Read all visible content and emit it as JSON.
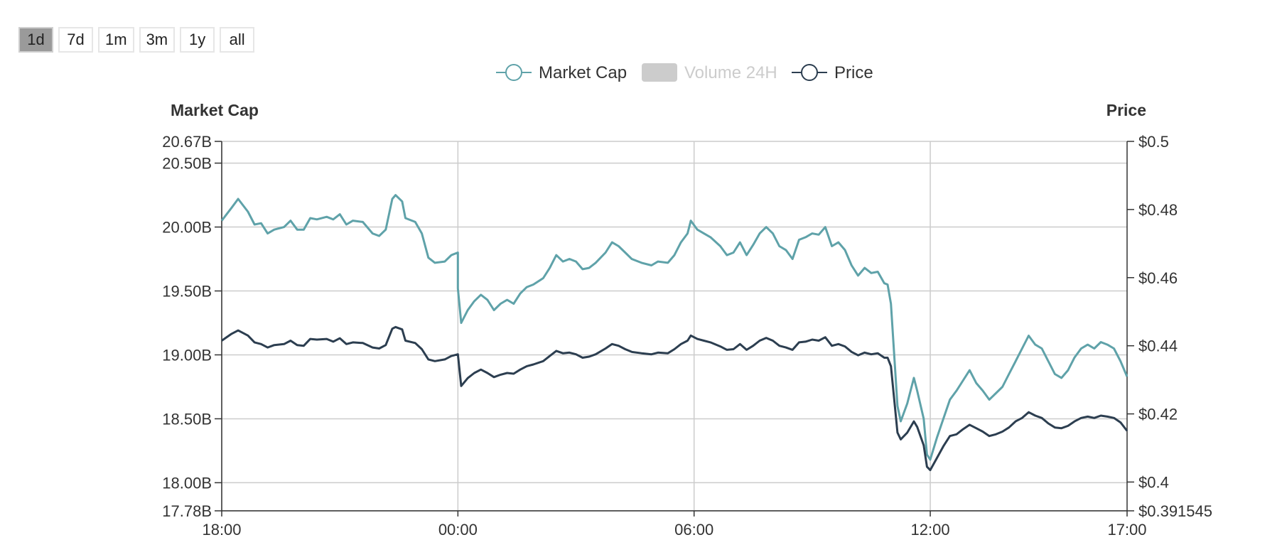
{
  "range_buttons": [
    {
      "label": "1d",
      "active": true
    },
    {
      "label": "7d",
      "active": false
    },
    {
      "label": "1m",
      "active": false
    },
    {
      "label": "3m",
      "active": false
    },
    {
      "label": "1y",
      "active": false
    },
    {
      "label": "all",
      "active": false
    }
  ],
  "legend": [
    {
      "label": "Market Cap",
      "enabled": true,
      "color": "#5fa2a9"
    },
    {
      "label": "Volume 24H",
      "enabled": false,
      "color": "#cccccc"
    },
    {
      "label": "Price",
      "enabled": true,
      "color": "#2c3e50"
    }
  ],
  "chart_data": {
    "type": "line",
    "left_axis_title": "Market Cap",
    "right_axis_title": "Price",
    "x_ticks": [
      "18:00",
      "00:00",
      "06:00",
      "12:00",
      "17:00"
    ],
    "x_range": [
      "18:00",
      "17:00"
    ],
    "left_ticks": [
      "20.67B",
      "20.50B",
      "20.00B",
      "19.50B",
      "19.00B",
      "18.50B",
      "18.00B",
      "17.78B"
    ],
    "left_tick_values": [
      20.67,
      20.5,
      20.0,
      19.5,
      19.0,
      18.5,
      18.0,
      17.78
    ],
    "left_ylim": [
      17.78,
      20.67
    ],
    "right_ticks": [
      "$0.5",
      "$0.48",
      "$0.46",
      "$0.44",
      "$0.42",
      "$0.4",
      "$0.391545"
    ],
    "right_tick_values": [
      0.5,
      0.48,
      0.46,
      0.44,
      0.42,
      0.4,
      0.391545
    ],
    "right_ylim": [
      0.391545,
      0.5
    ],
    "grid": true,
    "legend_position": "top-center",
    "series": [
      {
        "name": "Market Cap",
        "axis": "left",
        "unit": "B",
        "color": "#5fa2a9",
        "points": [
          [
            "18:00",
            20.05
          ],
          [
            "18:15",
            20.15
          ],
          [
            "18:25",
            20.22
          ],
          [
            "18:40",
            20.12
          ],
          [
            "18:50",
            20.02
          ],
          [
            "19:00",
            20.03
          ],
          [
            "19:10",
            19.95
          ],
          [
            "19:20",
            19.98
          ],
          [
            "19:35",
            20.0
          ],
          [
            "19:45",
            20.05
          ],
          [
            "19:55",
            19.98
          ],
          [
            "20:05",
            19.98
          ],
          [
            "20:15",
            20.07
          ],
          [
            "20:25",
            20.06
          ],
          [
            "20:40",
            20.08
          ],
          [
            "20:50",
            20.06
          ],
          [
            "21:00",
            20.1
          ],
          [
            "21:10",
            20.02
          ],
          [
            "21:20",
            20.05
          ],
          [
            "21:35",
            20.04
          ],
          [
            "21:50",
            19.95
          ],
          [
            "22:00",
            19.93
          ],
          [
            "22:10",
            19.98
          ],
          [
            "22:20",
            20.22
          ],
          [
            "22:25",
            20.25
          ],
          [
            "22:35",
            20.2
          ],
          [
            "22:40",
            20.07
          ],
          [
            "22:55",
            20.04
          ],
          [
            "23:05",
            19.95
          ],
          [
            "23:15",
            19.76
          ],
          [
            "23:25",
            19.72
          ],
          [
            "23:40",
            19.73
          ],
          [
            "23:50",
            19.78
          ],
          [
            "00:00",
            19.8
          ]
        ],
        "points_after_midnight": [
          [
            "00:00",
            19.52
          ],
          [
            "00:05",
            19.25
          ],
          [
            "00:15",
            19.35
          ],
          [
            "00:25",
            19.42
          ],
          [
            "00:35",
            19.47
          ],
          [
            "00:45",
            19.43
          ],
          [
            "00:55",
            19.35
          ],
          [
            "01:05",
            19.4
          ],
          [
            "01:15",
            19.43
          ],
          [
            "01:25",
            19.4
          ],
          [
            "01:35",
            19.48
          ],
          [
            "01:45",
            19.53
          ],
          [
            "01:55",
            19.55
          ],
          [
            "02:10",
            19.6
          ],
          [
            "02:20",
            19.68
          ],
          [
            "02:30",
            19.78
          ],
          [
            "02:40",
            19.73
          ],
          [
            "02:50",
            19.75
          ],
          [
            "03:00",
            19.73
          ],
          [
            "03:10",
            19.67
          ],
          [
            "03:20",
            19.68
          ],
          [
            "03:30",
            19.72
          ],
          [
            "03:45",
            19.8
          ],
          [
            "03:55",
            19.88
          ],
          [
            "04:05",
            19.85
          ],
          [
            "04:15",
            19.8
          ],
          [
            "04:25",
            19.75
          ],
          [
            "04:40",
            19.72
          ],
          [
            "04:55",
            19.7
          ],
          [
            "05:05",
            19.73
          ],
          [
            "05:20",
            19.72
          ],
          [
            "05:30",
            19.78
          ],
          [
            "05:40",
            19.88
          ],
          [
            "05:50",
            19.95
          ],
          [
            "05:55",
            20.05
          ],
          [
            "06:05",
            19.98
          ],
          [
            "06:15",
            19.95
          ],
          [
            "06:25",
            19.92
          ],
          [
            "06:40",
            19.85
          ],
          [
            "06:50",
            19.78
          ],
          [
            "07:00",
            19.8
          ],
          [
            "07:10",
            19.88
          ],
          [
            "07:20",
            19.78
          ],
          [
            "07:30",
            19.86
          ],
          [
            "07:40",
            19.95
          ],
          [
            "07:50",
            20.0
          ],
          [
            "08:00",
            19.95
          ],
          [
            "08:10",
            19.85
          ],
          [
            "08:20",
            19.82
          ],
          [
            "08:30",
            19.75
          ],
          [
            "08:40",
            19.9
          ],
          [
            "08:50",
            19.92
          ],
          [
            "09:00",
            19.95
          ],
          [
            "09:10",
            19.94
          ],
          [
            "09:20",
            20.0
          ],
          [
            "09:30",
            19.85
          ],
          [
            "09:40",
            19.88
          ],
          [
            "09:50",
            19.82
          ],
          [
            "10:00",
            19.7
          ],
          [
            "10:10",
            19.62
          ],
          [
            "10:20",
            19.68
          ],
          [
            "10:30",
            19.64
          ],
          [
            "10:40",
            19.65
          ],
          [
            "10:50",
            19.56
          ],
          [
            "10:55",
            19.55
          ]
        ],
        "points_late": [
          [
            "11:00",
            19.4
          ],
          [
            "11:10",
            18.6
          ],
          [
            "11:15",
            18.48
          ],
          [
            "11:25",
            18.62
          ],
          [
            "11:35",
            18.82
          ],
          [
            "11:40",
            18.72
          ],
          [
            "11:50",
            18.5
          ],
          [
            "11:55",
            18.22
          ],
          [
            "12:00",
            18.18
          ],
          [
            "12:10",
            18.35
          ],
          [
            "12:20",
            18.5
          ],
          [
            "12:30",
            18.65
          ],
          [
            "12:40",
            18.72
          ],
          [
            "12:50",
            18.8
          ],
          [
            "13:00",
            18.88
          ],
          [
            "13:10",
            18.78
          ],
          [
            "13:20",
            18.72
          ],
          [
            "13:30",
            18.65
          ],
          [
            "13:40",
            18.7
          ],
          [
            "13:50",
            18.75
          ],
          [
            "14:00",
            18.85
          ],
          [
            "14:10",
            18.95
          ],
          [
            "14:20",
            19.05
          ],
          [
            "14:30",
            19.15
          ],
          [
            "14:40",
            19.08
          ],
          [
            "14:50",
            19.05
          ],
          [
            "15:00",
            18.95
          ],
          [
            "15:10",
            18.85
          ],
          [
            "15:20",
            18.82
          ],
          [
            "15:30",
            18.88
          ],
          [
            "15:40",
            18.98
          ],
          [
            "15:50",
            19.05
          ],
          [
            "16:00",
            19.08
          ],
          [
            "16:10",
            19.05
          ],
          [
            "16:20",
            19.1
          ],
          [
            "16:30",
            19.08
          ],
          [
            "16:40",
            19.05
          ],
          [
            "16:50",
            18.95
          ],
          [
            "17:00",
            18.83
          ]
        ]
      },
      {
        "name": "Price",
        "axis": "right",
        "color": "#2c3e50",
        "points": [
          [
            "18:00",
            0.4415
          ],
          [
            "18:15",
            0.4435
          ],
          [
            "18:25",
            0.4445
          ],
          [
            "18:40",
            0.443
          ],
          [
            "18:50",
            0.441
          ],
          [
            "19:00",
            0.4405
          ],
          [
            "19:10",
            0.4395
          ],
          [
            "19:20",
            0.4402
          ],
          [
            "19:35",
            0.4405
          ],
          [
            "19:45",
            0.4415
          ],
          [
            "19:55",
            0.4402
          ],
          [
            "20:05",
            0.44
          ],
          [
            "20:15",
            0.442
          ],
          [
            "20:25",
            0.4418
          ],
          [
            "20:40",
            0.442
          ],
          [
            "20:50",
            0.4412
          ],
          [
            "21:00",
            0.4422
          ],
          [
            "21:10",
            0.4405
          ],
          [
            "21:20",
            0.441
          ],
          [
            "21:35",
            0.4408
          ],
          [
            "21:50",
            0.4395
          ],
          [
            "22:00",
            0.4392
          ],
          [
            "22:10",
            0.4402
          ],
          [
            "22:20",
            0.445
          ],
          [
            "22:25",
            0.4455
          ],
          [
            "22:35",
            0.4448
          ],
          [
            "22:40",
            0.4415
          ],
          [
            "22:55",
            0.4408
          ],
          [
            "23:05",
            0.439
          ],
          [
            "23:15",
            0.436
          ],
          [
            "23:25",
            0.4355
          ],
          [
            "23:40",
            0.436
          ],
          [
            "23:50",
            0.437
          ],
          [
            "00:00",
            0.4375
          ],
          [
            "00:05",
            0.4282
          ],
          [
            "00:15",
            0.4305
          ],
          [
            "00:25",
            0.432
          ],
          [
            "00:35",
            0.433
          ],
          [
            "00:45",
            0.432
          ],
          [
            "00:55",
            0.4308
          ],
          [
            "01:05",
            0.4315
          ],
          [
            "01:15",
            0.432
          ],
          [
            "01:25",
            0.4318
          ],
          [
            "01:35",
            0.433
          ],
          [
            "01:45",
            0.434
          ],
          [
            "01:55",
            0.4345
          ],
          [
            "02:10",
            0.4355
          ],
          [
            "02:20",
            0.437
          ],
          [
            "02:30",
            0.4385
          ],
          [
            "02:40",
            0.4378
          ],
          [
            "02:50",
            0.438
          ],
          [
            "03:00",
            0.4375
          ],
          [
            "03:10",
            0.4365
          ],
          [
            "03:20",
            0.4368
          ],
          [
            "03:30",
            0.4375
          ],
          [
            "03:45",
            0.4392
          ],
          [
            "03:55",
            0.4405
          ],
          [
            "04:05",
            0.44
          ],
          [
            "04:15",
            0.439
          ],
          [
            "04:25",
            0.4382
          ],
          [
            "04:40",
            0.4378
          ],
          [
            "04:55",
            0.4375
          ],
          [
            "05:05",
            0.438
          ],
          [
            "05:20",
            0.4378
          ],
          [
            "05:30",
            0.439
          ],
          [
            "05:40",
            0.4405
          ],
          [
            "05:50",
            0.4415
          ],
          [
            "05:55",
            0.443
          ],
          [
            "06:05",
            0.442
          ],
          [
            "06:15",
            0.4415
          ],
          [
            "06:25",
            0.441
          ],
          [
            "06:40",
            0.4398
          ],
          [
            "06:50",
            0.4388
          ],
          [
            "07:00",
            0.439
          ],
          [
            "07:10",
            0.4405
          ],
          [
            "07:20",
            0.4388
          ],
          [
            "07:30",
            0.44
          ],
          [
            "07:40",
            0.4415
          ],
          [
            "07:50",
            0.4423
          ],
          [
            "08:00",
            0.4415
          ],
          [
            "08:10",
            0.44
          ],
          [
            "08:20",
            0.4395
          ],
          [
            "08:30",
            0.4388
          ],
          [
            "08:40",
            0.441
          ],
          [
            "08:50",
            0.4412
          ],
          [
            "09:00",
            0.4418
          ],
          [
            "09:10",
            0.4415
          ],
          [
            "09:20",
            0.4425
          ],
          [
            "09:30",
            0.44
          ],
          [
            "09:40",
            0.4405
          ],
          [
            "09:50",
            0.4398
          ],
          [
            "10:00",
            0.4382
          ],
          [
            "10:10",
            0.4372
          ],
          [
            "10:20",
            0.438
          ],
          [
            "10:30",
            0.4375
          ],
          [
            "10:40",
            0.4378
          ],
          [
            "10:50",
            0.4365
          ],
          [
            "10:55",
            0.4365
          ],
          [
            "11:00",
            0.434
          ],
          [
            "11:10",
            0.4145
          ],
          [
            "11:15",
            0.4125
          ],
          [
            "11:25",
            0.4145
          ],
          [
            "11:35",
            0.4178
          ],
          [
            "11:40",
            0.4162
          ],
          [
            "11:50",
            0.4108
          ],
          [
            "11:55",
            0.4045
          ],
          [
            "12:00",
            0.4035
          ],
          [
            "12:10",
            0.407
          ],
          [
            "12:20",
            0.4105
          ],
          [
            "12:30",
            0.4135
          ],
          [
            "12:40",
            0.414
          ],
          [
            "12:50",
            0.4155
          ],
          [
            "13:00",
            0.4168
          ],
          [
            "13:10",
            0.4158
          ],
          [
            "13:20",
            0.4148
          ],
          [
            "13:30",
            0.4135
          ],
          [
            "13:40",
            0.414
          ],
          [
            "13:50",
            0.4148
          ],
          [
            "14:00",
            0.416
          ],
          [
            "14:10",
            0.4178
          ],
          [
            "14:20",
            0.4188
          ],
          [
            "14:30",
            0.4205
          ],
          [
            "14:40",
            0.4195
          ],
          [
            "14:50",
            0.4188
          ],
          [
            "15:00",
            0.4172
          ],
          [
            "15:10",
            0.416
          ],
          [
            "15:20",
            0.4158
          ],
          [
            "15:30",
            0.4165
          ],
          [
            "15:40",
            0.4178
          ],
          [
            "15:50",
            0.4188
          ],
          [
            "16:00",
            0.4192
          ],
          [
            "16:10",
            0.4188
          ],
          [
            "16:20",
            0.4195
          ],
          [
            "16:30",
            0.4192
          ],
          [
            "16:40",
            0.4188
          ],
          [
            "16:50",
            0.4175
          ],
          [
            "17:00",
            0.415
          ]
        ]
      }
    ]
  }
}
